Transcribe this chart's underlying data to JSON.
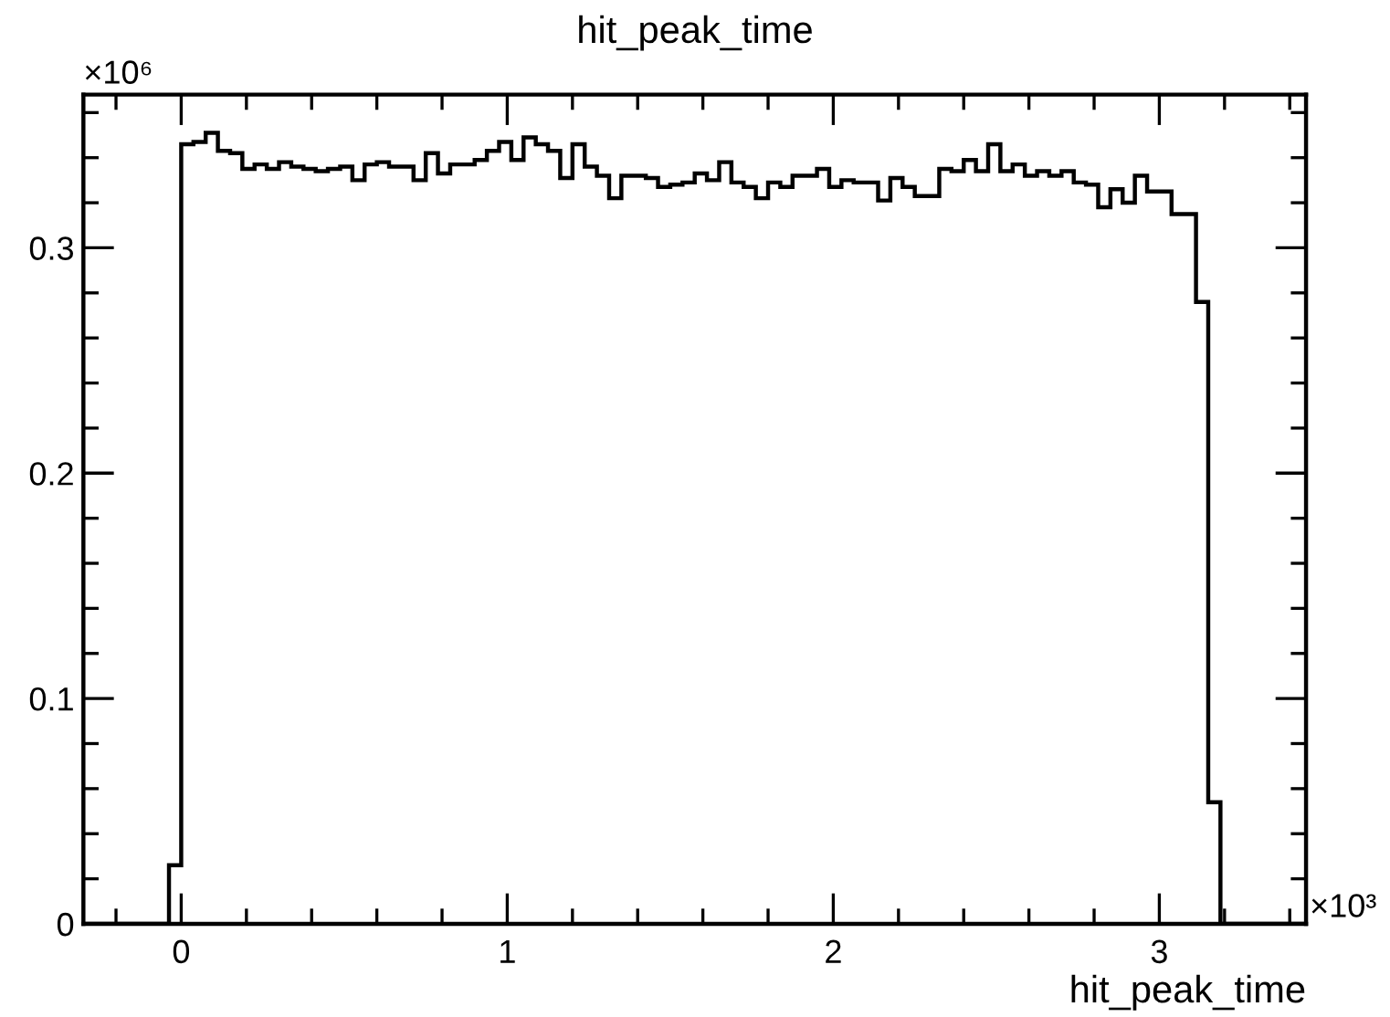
{
  "chart_data": {
    "type": "histogram",
    "title": "hit_peak_time",
    "xlabel": "hit_peak_time",
    "annotations": [
      "×10⁶",
      "×10³"
    ],
    "bins": [
      -0.3,
      -0.2625,
      -0.225,
      -0.1875,
      -0.15,
      -0.1125,
      -0.075,
      -0.0375,
      0,
      0.0375,
      0.075,
      0.1125,
      0.15,
      0.1875,
      0.225,
      0.2625,
      0.3,
      0.3375,
      0.375,
      0.4125,
      0.45,
      0.4875,
      0.525,
      0.5625,
      0.6,
      0.6375,
      0.675,
      0.7125,
      0.75,
      0.7875,
      0.825,
      0.8625,
      0.9,
      0.9375,
      0.975,
      1.0125,
      1.05,
      1.0875,
      1.125,
      1.1625,
      1.2,
      1.2375,
      1.275,
      1.3125,
      1.35,
      1.3875,
      1.425,
      1.4625,
      1.5,
      1.5375,
      1.575,
      1.6125,
      1.65,
      1.6875,
      1.725,
      1.7625,
      1.8,
      1.8375,
      1.875,
      1.9125,
      1.95,
      1.9875,
      2.025,
      2.0625,
      2.1,
      2.1375,
      2.175,
      2.2125,
      2.25,
      2.2875,
      2.325,
      2.3625,
      2.4,
      2.4375,
      2.475,
      2.5125,
      2.55,
      2.5875,
      2.625,
      2.6625,
      2.7,
      2.7375,
      2.775,
      2.8125,
      2.85,
      2.8875,
      2.925,
      2.9625,
      3.0,
      3.0375,
      3.075,
      3.1125,
      3.15,
      3.1875,
      3.225,
      3.2625,
      3.3,
      3.3375,
      3.375,
      3.4125,
      3.45
    ],
    "values": [
      0,
      0,
      0,
      0,
      0,
      0,
      0,
      0.026,
      0.346,
      0.347,
      0.351,
      0.343,
      0.342,
      0.335,
      0.337,
      0.335,
      0.338,
      0.336,
      0.335,
      0.334,
      0.335,
      0.336,
      0.33,
      0.337,
      0.338,
      0.336,
      0.336,
      0.33,
      0.342,
      0.333,
      0.337,
      0.337,
      0.339,
      0.343,
      0.347,
      0.339,
      0.349,
      0.346,
      0.343,
      0.331,
      0.346,
      0.336,
      0.332,
      0.322,
      0.332,
      0.332,
      0.331,
      0.327,
      0.328,
      0.329,
      0.333,
      0.33,
      0.338,
      0.329,
      0.327,
      0.322,
      0.329,
      0.327,
      0.332,
      0.332,
      0.335,
      0.327,
      0.33,
      0.329,
      0.329,
      0.321,
      0.331,
      0.327,
      0.323,
      0.323,
      0.335,
      0.334,
      0.339,
      0.334,
      0.346,
      0.334,
      0.337,
      0.332,
      0.334,
      0.332,
      0.334,
      0.329,
      0.328,
      0.318,
      0.326,
      0.32,
      0.332,
      0.325,
      0.325,
      0.315,
      0.315,
      0.276,
      0.054,
      0,
      0,
      0,
      0,
      0,
      0,
      0
    ],
    "color": "#000000",
    "xlim": [
      -0.3,
      3.45
    ],
    "xticks": [
      0,
      1,
      2,
      3
    ],
    "ylim": [
      0,
      0.368
    ],
    "yticks": [
      0,
      0.1,
      0.2,
      0.3
    ],
    "grid": false,
    "legend": false
  }
}
